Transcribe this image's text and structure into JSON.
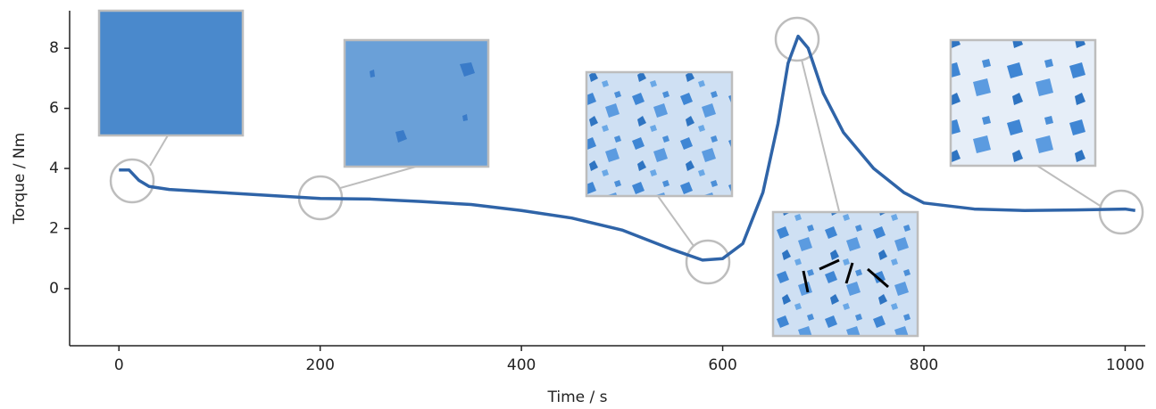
{
  "chart_data": {
    "type": "line",
    "xlabel": "Time / s",
    "ylabel": "Torque / Nm",
    "x": [
      0,
      10,
      20,
      30,
      50,
      100,
      150,
      200,
      250,
      300,
      350,
      400,
      450,
      500,
      550,
      580,
      600,
      620,
      640,
      655,
      665,
      675,
      685,
      700,
      720,
      750,
      780,
      800,
      850,
      900,
      950,
      1000,
      1010
    ],
    "series": [
      {
        "color": "#2f64a8",
        "values": [
          3.95,
          3.95,
          3.6,
          3.4,
          3.3,
          3.2,
          3.1,
          3.0,
          2.98,
          2.9,
          2.8,
          2.6,
          2.35,
          1.95,
          1.3,
          0.95,
          1.0,
          1.5,
          3.2,
          5.5,
          7.5,
          8.4,
          8.0,
          6.5,
          5.2,
          4.0,
          3.2,
          2.85,
          2.65,
          2.6,
          2.62,
          2.65,
          2.6
        ]
      }
    ],
    "xlim": [
      -49,
      1020
    ],
    "ylim": [
      -1.9,
      9.25
    ],
    "xticks": [
      0,
      200,
      400,
      600,
      800,
      1000
    ],
    "yticks": [
      0,
      2,
      4,
      6,
      8
    ]
  }
}
